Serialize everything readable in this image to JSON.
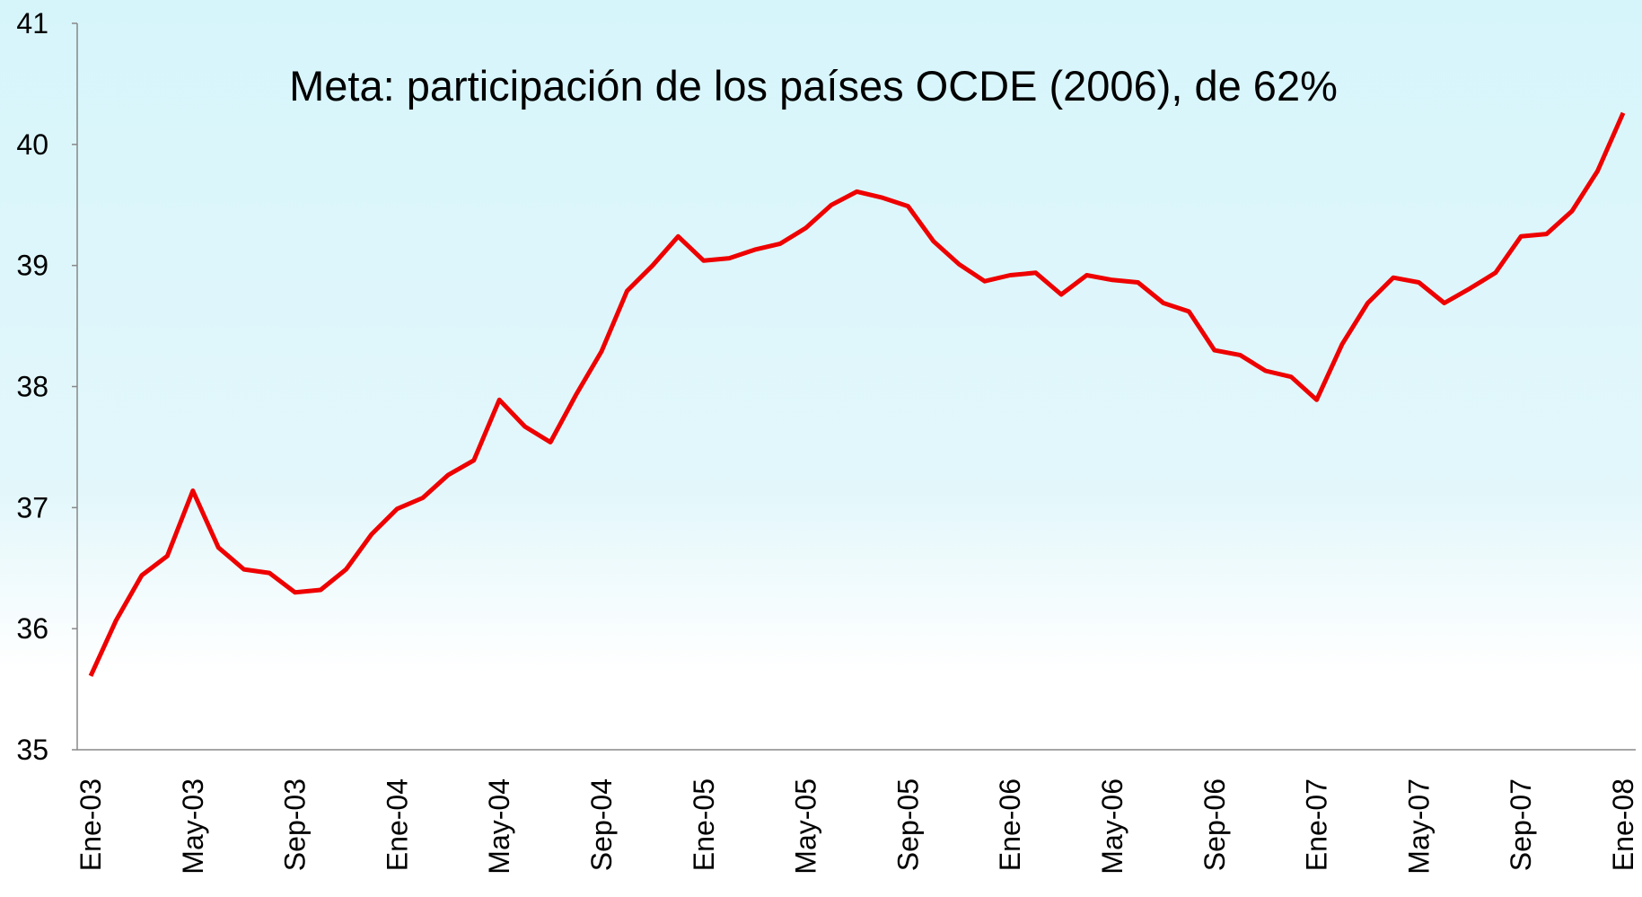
{
  "chart_data": {
    "type": "line",
    "title": "Meta: participación de los países OCDE (2006), de 62%",
    "categories": [
      "Ene-03",
      null,
      null,
      null,
      "May-03",
      null,
      null,
      null,
      "Sep-03",
      null,
      null,
      null,
      "Ene-04",
      null,
      null,
      null,
      "May-04",
      null,
      null,
      null,
      "Sep-04",
      null,
      null,
      null,
      "Ene-05",
      null,
      null,
      null,
      "May-05",
      null,
      null,
      null,
      "Sep-05",
      null,
      null,
      null,
      "Ene-06",
      null,
      null,
      null,
      "May-06",
      null,
      null,
      null,
      "Sep-06",
      null,
      null,
      null,
      "Ene-07",
      null,
      null,
      null,
      "May-07",
      null,
      null,
      null,
      "Sep-07",
      null,
      null,
      null,
      "Ene-08"
    ],
    "series": [
      {
        "color": "#ee0000",
        "values": [
          35.61,
          36.07,
          36.44,
          36.6,
          37.14,
          36.67,
          36.49,
          36.46,
          36.3,
          36.32,
          36.49,
          36.78,
          36.99,
          37.08,
          37.27,
          37.39,
          37.89,
          37.67,
          37.54,
          37.93,
          38.29,
          38.79,
          39.0,
          39.24,
          39.04,
          39.06,
          39.13,
          39.18,
          39.31,
          39.5,
          39.61,
          39.56,
          39.49,
          39.2,
          39.01,
          38.87,
          38.92,
          38.94,
          38.76,
          38.92,
          38.88,
          38.86,
          38.69,
          38.62,
          38.3,
          38.26,
          38.13,
          38.08,
          37.89,
          38.35,
          38.69,
          38.9,
          38.86,
          38.69,
          38.81,
          38.94,
          39.24,
          39.26,
          39.45,
          39.78,
          40.26
        ]
      }
    ],
    "ylim": [
      35,
      41
    ],
    "yticks": [
      35,
      36,
      37,
      38,
      39,
      40,
      41
    ],
    "grid": false
  }
}
